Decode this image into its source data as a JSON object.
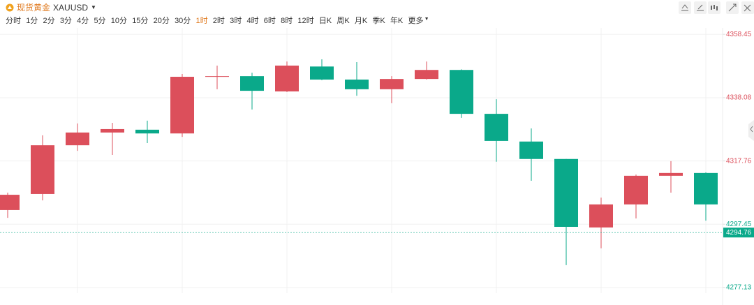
{
  "header": {
    "name": "现货黄金",
    "symbol": "XAUUSD"
  },
  "toolbar": {
    "intervals": [
      "分时",
      "1分",
      "2分",
      "3分",
      "4分",
      "5分",
      "10分",
      "15分",
      "20分",
      "30分",
      "1时",
      "2时",
      "3时",
      "4时",
      "6时",
      "8时",
      "12时",
      "日K",
      "周K",
      "月K",
      "季K",
      "年K",
      "更多"
    ],
    "active_index": 10
  },
  "chart_data": {
    "type": "candlestick",
    "categories": [
      null,
      null,
      null,
      null,
      null,
      null,
      null,
      null,
      null,
      null,
      null,
      null,
      null,
      null,
      null,
      null,
      null,
      null,
      null,
      null,
      null
    ],
    "open": [
      4302.0,
      4307.15,
      4322.8,
      4326.9,
      4327.8,
      4326.6,
      4344.8,
      4345.0,
      4340.1,
      4348.1,
      4343.9,
      4340.8,
      4344.1,
      4347.0,
      4332.9,
      4324.0,
      4318.4,
      4296.4,
      4303.8,
      4313.0,
      4313.9
    ],
    "high": [
      4307.6,
      4326.0,
      4329.8,
      4330.0,
      4330.7,
      4345.7,
      4348.4,
      4346.1,
      4349.7,
      4350.4,
      4349.5,
      4345.0,
      4349.7,
      4347.2,
      4337.6,
      4328.2,
      4318.4,
      4306.0,
      4313.4,
      4317.7,
      4314.1
    ],
    "low": [
      4299.5,
      4305.1,
      4321.0,
      4319.7,
      4323.5,
      4325.5,
      4340.8,
      4334.3,
      4339.9,
      4343.7,
      4338.7,
      4336.3,
      4343.9,
      4331.6,
      4317.5,
      4311.4,
      4284.3,
      4289.7,
      4299.3,
      4307.6,
      4298.6
    ],
    "close": [
      4306.9,
      4322.8,
      4326.9,
      4328.0,
      4326.6,
      4344.8,
      4345.0,
      4340.3,
      4348.4,
      4343.9,
      4340.8,
      4344.1,
      4347.0,
      4332.9,
      4324.2,
      4318.4,
      4296.6,
      4303.8,
      4313.0,
      4313.9,
      4303.8
    ],
    "up_color": "#dc4f5b",
    "down_color": "#0aa98a",
    "ylim": [
      4275.3,
      4360.5
    ],
    "yticks": [
      4358.45,
      4338.08,
      4317.76,
      4297.45,
      4277.13
    ],
    "ytick_colors": [
      "#dc4f5b",
      "#dc4f5b",
      "#dc4f5b",
      "#0aa98a",
      "#0aa98a"
    ],
    "grid": true,
    "current_price": 4294.76,
    "current_price_color": "#0aa98a"
  }
}
